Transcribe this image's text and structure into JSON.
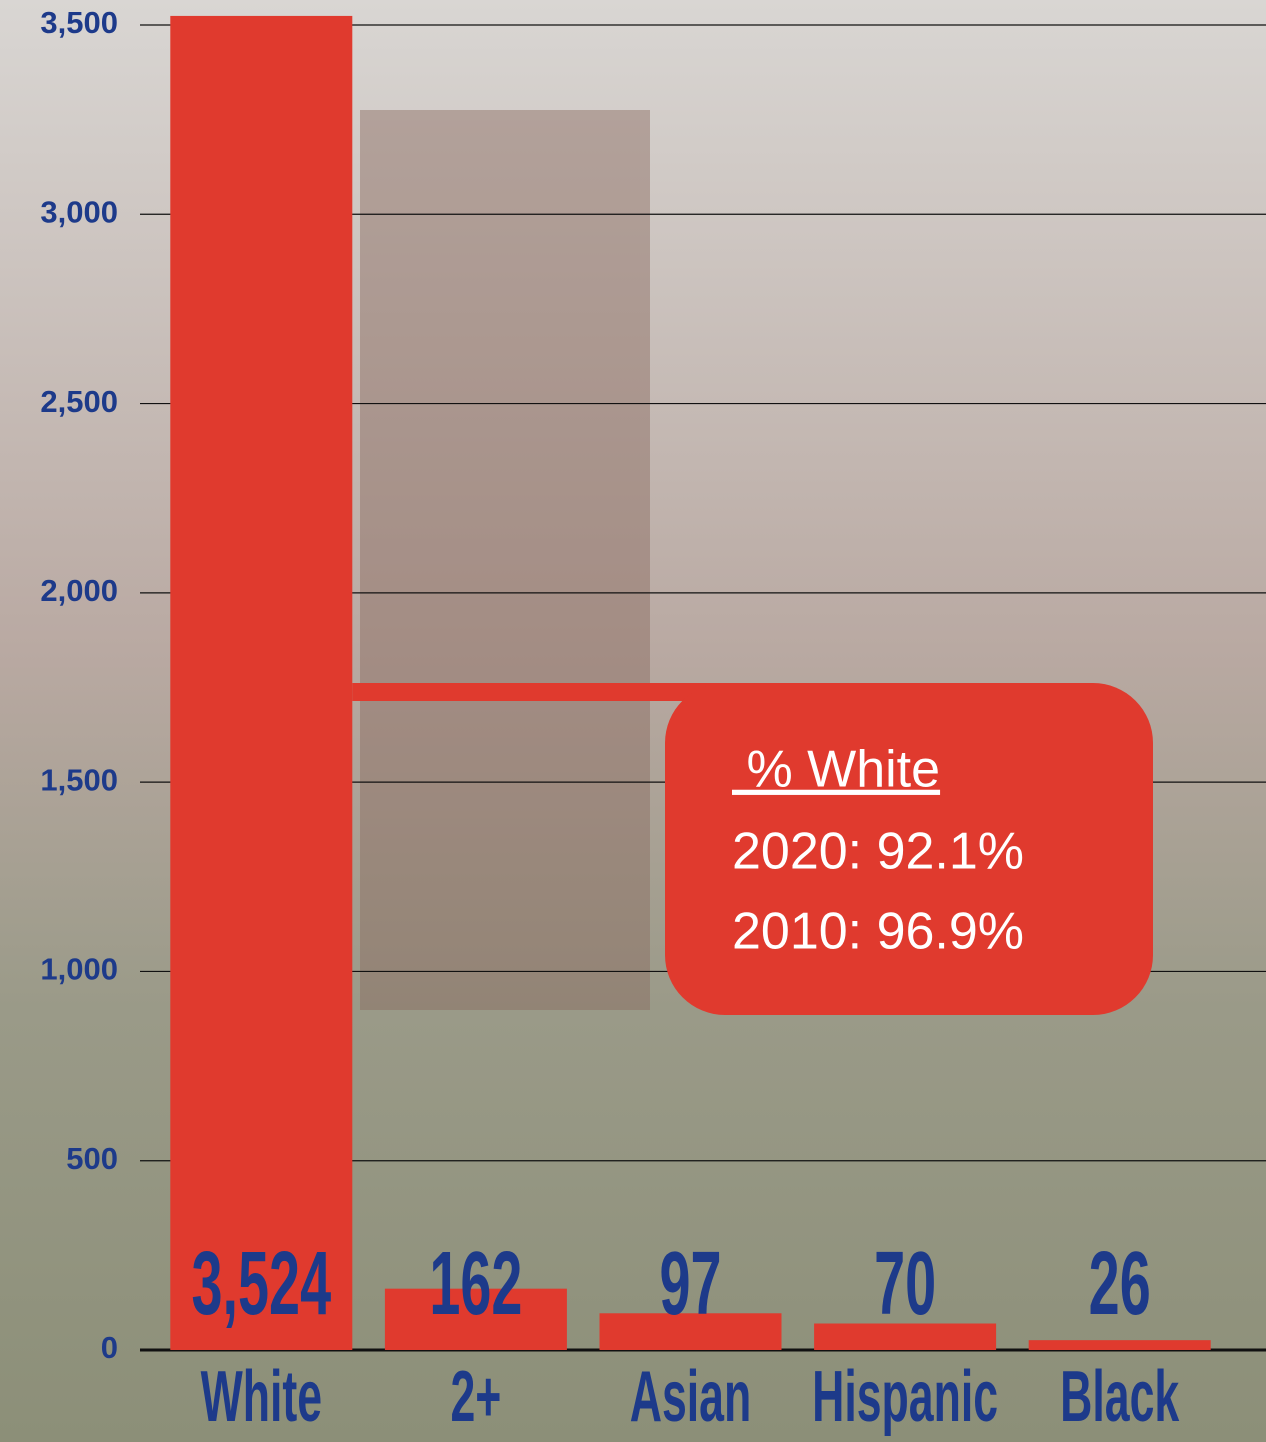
{
  "chart_data": {
    "type": "bar",
    "categories": [
      "White",
      "2+",
      "Asian",
      "Hispanic",
      "Black"
    ],
    "values": [
      3524,
      162,
      97,
      70,
      26
    ],
    "value_labels": [
      "3,524",
      "162",
      "97",
      "70",
      "26"
    ],
    "color": "#e03a2e",
    "ylim": [
      0,
      3500
    ],
    "yticks": [
      0,
      500,
      {
        "value": 1000,
        "label": "1,000"
      },
      {
        "value": 1500,
        "label": "1,500"
      },
      {
        "value": 2000,
        "label": "2,000"
      },
      {
        "value": 2500,
        "label": "2,500"
      },
      {
        "value": 3000,
        "label": "3,000"
      },
      {
        "value": 3500,
        "label": "3,500"
      }
    ],
    "grid": true,
    "annotation": {
      "title": " % White",
      "lines": [
        "2020: 92.1%",
        "2010: 96.9%"
      ]
    }
  }
}
